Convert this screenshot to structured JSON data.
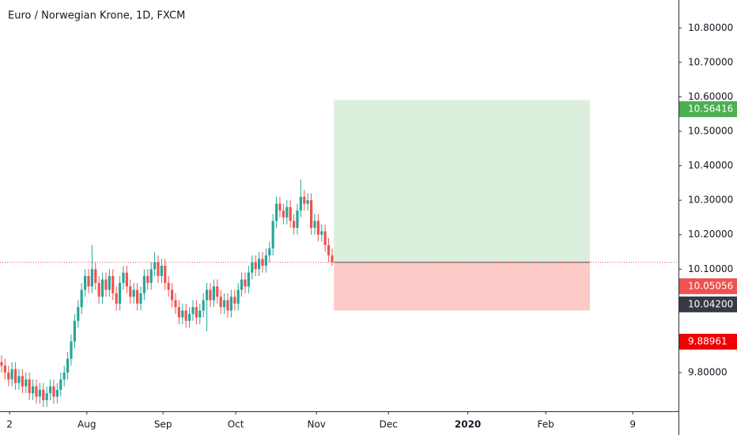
{
  "chart_data": {
    "type": "candlestick",
    "title": "Euro / Norwegian Krone, 1D, FXCM",
    "up_color": "#26a69a",
    "down_color": "#ef5350",
    "open": [
      9.83,
      9.82,
      9.8,
      9.78,
      9.81,
      9.77,
      9.79,
      9.76,
      9.78,
      9.74,
      9.76,
      9.73,
      9.75,
      9.72,
      9.74,
      9.76,
      9.73,
      9.75,
      9.78,
      9.8,
      9.84,
      9.89,
      9.95,
      9.99,
      10.04,
      10.08,
      10.05,
      10.1,
      10.06,
      10.02,
      10.07,
      10.04,
      10.08,
      10.03,
      10.0,
      10.06,
      10.09,
      10.05,
      10.02,
      10.04,
      10.0,
      10.03,
      10.08,
      10.06,
      10.1,
      10.12,
      10.08,
      10.11,
      10.06,
      10.04,
      10.01,
      9.99,
      9.96,
      9.98,
      9.95,
      9.97,
      9.99,
      9.96,
      9.98,
      10.01,
      10.04,
      10.01,
      10.05,
      10.02,
      9.99,
      10.01,
      9.98,
      10.02,
      10.0,
      10.04,
      10.07,
      10.05,
      10.09,
      10.12,
      10.1,
      10.13,
      10.11,
      10.14,
      10.16,
      10.24,
      10.29,
      10.27,
      10.25,
      10.28,
      10.24,
      10.22,
      10.27,
      10.31,
      10.29,
      10.3,
      10.22,
      10.24,
      10.2,
      10.21,
      10.17,
      10.14
    ],
    "high": [
      9.85,
      9.84,
      9.82,
      9.83,
      9.83,
      9.81,
      9.81,
      9.8,
      9.8,
      9.78,
      9.78,
      9.77,
      9.77,
      9.76,
      9.78,
      9.78,
      9.77,
      9.8,
      9.82,
      9.86,
      9.91,
      9.97,
      10.01,
      10.06,
      10.1,
      10.1,
      10.17,
      10.12,
      10.08,
      10.09,
      10.09,
      10.1,
      10.1,
      10.05,
      10.08,
      10.11,
      10.11,
      10.07,
      10.06,
      10.06,
      10.05,
      10.1,
      10.1,
      10.12,
      10.15,
      10.14,
      10.13,
      10.13,
      10.08,
      10.06,
      10.03,
      10.01,
      10.0,
      10.0,
      9.99,
      10.01,
      10.01,
      10.0,
      10.03,
      10.06,
      10.06,
      10.07,
      10.07,
      10.04,
      10.03,
      10.03,
      10.04,
      10.04,
      10.06,
      10.09,
      10.09,
      10.11,
      10.14,
      10.14,
      10.15,
      10.15,
      10.16,
      10.18,
      10.26,
      10.31,
      10.31,
      10.29,
      10.3,
      10.3,
      10.26,
      10.29,
      10.36,
      10.33,
      10.32,
      10.32,
      10.26,
      10.26,
      10.23,
      10.23,
      10.19,
      10.16
    ],
    "low": [
      9.8,
      9.78,
      9.76,
      9.76,
      9.75,
      9.75,
      9.74,
      9.74,
      9.72,
      9.72,
      9.71,
      9.71,
      9.7,
      9.7,
      9.72,
      9.71,
      9.71,
      9.73,
      9.76,
      9.78,
      9.82,
      9.87,
      9.93,
      9.97,
      10.02,
      10.03,
      10.03,
      10.04,
      10.0,
      10.0,
      10.02,
      10.02,
      10.01,
      9.98,
      9.98,
      10.04,
      10.03,
      10.0,
      10.0,
      9.98,
      9.98,
      10.01,
      10.04,
      10.04,
      10.08,
      10.06,
      10.06,
      10.04,
      10.02,
      9.99,
      9.97,
      9.94,
      9.94,
      9.93,
      9.93,
      9.95,
      9.94,
      9.94,
      9.96,
      9.92,
      9.99,
      9.99,
      10.0,
      9.97,
      9.97,
      9.96,
      9.96,
      9.98,
      9.98,
      10.02,
      10.03,
      10.03,
      10.07,
      10.08,
      10.08,
      10.09,
      10.09,
      10.12,
      10.14,
      10.22,
      10.25,
      10.23,
      10.23,
      10.22,
      10.2,
      10.2,
      10.25,
      10.27,
      10.27,
      10.2,
      10.2,
      10.18,
      10.18,
      10.15,
      10.12,
      10.11
    ],
    "close": [
      9.82,
      9.8,
      9.78,
      9.81,
      9.77,
      9.79,
      9.76,
      9.78,
      9.74,
      9.76,
      9.73,
      9.75,
      9.72,
      9.74,
      9.76,
      9.73,
      9.75,
      9.78,
      9.8,
      9.84,
      9.89,
      9.95,
      9.99,
      10.04,
      10.08,
      10.05,
      10.1,
      10.06,
      10.02,
      10.07,
      10.04,
      10.08,
      10.03,
      10.0,
      10.06,
      10.09,
      10.05,
      10.02,
      10.04,
      10.0,
      10.03,
      10.08,
      10.06,
      10.1,
      10.12,
      10.08,
      10.11,
      10.06,
      10.04,
      10.01,
      9.99,
      9.96,
      9.98,
      9.95,
      9.97,
      9.99,
      9.96,
      9.98,
      10.01,
      10.04,
      10.01,
      10.05,
      10.02,
      9.99,
      10.01,
      9.98,
      10.02,
      10.0,
      10.04,
      10.07,
      10.05,
      10.09,
      10.12,
      10.1,
      10.13,
      10.11,
      10.14,
      10.16,
      10.24,
      10.29,
      10.27,
      10.25,
      10.28,
      10.24,
      10.22,
      10.27,
      10.31,
      10.29,
      10.3,
      10.22,
      10.24,
      10.2,
      10.21,
      10.17,
      10.14,
      10.12
    ],
    "xlim": [
      -0.45,
      194.55
    ],
    "xticks": [
      {
        "value": 2.3,
        "label": "2"
      },
      {
        "value": 24.5,
        "label": "Aug"
      },
      {
        "value": 46.4,
        "label": "Sep"
      },
      {
        "value": 67.3,
        "label": "Oct"
      },
      {
        "value": 90.5,
        "label": "Nov"
      },
      {
        "value": 111.2,
        "label": "Dec"
      },
      {
        "value": 134,
        "label": "2020"
      },
      {
        "value": 156.4,
        "label": "Feb"
      },
      {
        "value": 181.4,
        "label": "9"
      }
    ],
    "ylim": [
      9.6877,
      10.8809
    ],
    "yticks": [
      {
        "value": 9.8,
        "label": "9.80000"
      },
      {
        "value": 10.1,
        "label": "10.10000"
      },
      {
        "value": 10.2,
        "label": "10.20000"
      },
      {
        "value": 10.3,
        "label": "10.30000"
      },
      {
        "value": 10.4,
        "label": "10.40000"
      },
      {
        "value": 10.5,
        "label": "10.50000"
      },
      {
        "value": 10.6,
        "label": "10.60000"
      },
      {
        "value": 10.7,
        "label": "10.70000"
      },
      {
        "value": 10.8,
        "label": "10.80000"
      }
    ],
    "current_price": 10.12,
    "position": {
      "start": 95.5,
      "end": 169.1,
      "target": 10.59,
      "entry": 10.12,
      "stop": 9.98
    },
    "price_labels": [
      {
        "value": 10.56416,
        "color": "#4caf50"
      },
      {
        "value": 10.05056,
        "color": "#ef5350"
      },
      {
        "value": 10.042,
        "label": "10.04200",
        "color": "#363a45"
      },
      {
        "value": 9.88961,
        "color": "#f00000"
      }
    ]
  }
}
